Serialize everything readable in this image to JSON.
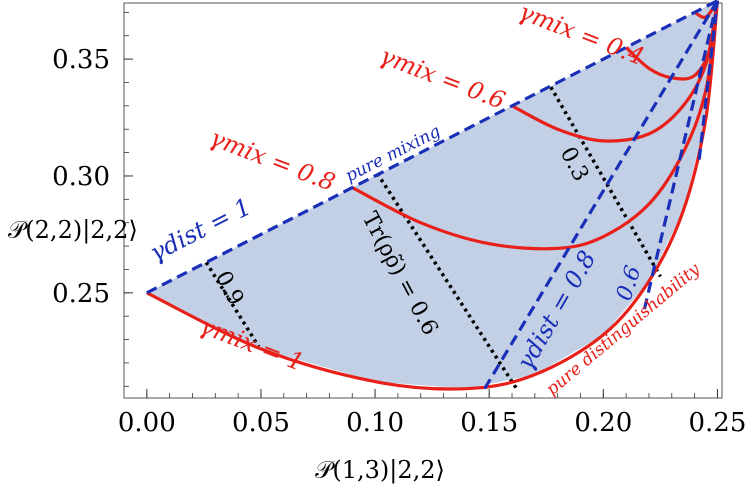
{
  "chart_data": {
    "type": "line",
    "xlim": [
      -0.01,
      0.252
    ],
    "ylim": [
      0.205,
      0.374
    ],
    "x_ticks": [
      0.0,
      0.05,
      0.1,
      0.15,
      0.2,
      0.25
    ],
    "x_tick_labels": [
      "0.00",
      "0.05",
      "0.10",
      "0.15",
      "0.20",
      "0.25"
    ],
    "y_ticks": [
      0.25,
      0.3,
      0.35
    ],
    "y_tick_labels": [
      "0.25",
      "0.30",
      "0.35"
    ],
    "xlabel": "𝒫(1,3)|2,2⟩",
    "ylabel": "𝒫(2,2)|2,2⟩",
    "colors": {
      "region_fill": "#c3d0e6",
      "gamma_mix": "#e8201a",
      "gamma_dist": "#1a2fb8",
      "purity": "#000000"
    },
    "region": {
      "upper_boundary": {
        "name": "pure mixing",
        "x": [
          0.0,
          0.25
        ],
        "y": [
          0.25,
          0.375
        ]
      },
      "lower_boundary": {
        "name": "pure distinguishability",
        "x": [
          0.0,
          0.05,
          0.1,
          0.14,
          0.17,
          0.2,
          0.22,
          0.235,
          0.245,
          0.25
        ],
        "y": [
          0.25,
          0.226,
          0.212,
          0.209,
          0.215,
          0.232,
          0.255,
          0.285,
          0.325,
          0.375
        ]
      }
    },
    "gamma_mix_series": [
      {
        "name": "γmix = 1",
        "x": [
          0.0,
          0.05,
          0.1,
          0.14,
          0.17,
          0.2,
          0.22,
          0.235,
          0.245,
          0.25
        ],
        "y": [
          0.25,
          0.226,
          0.212,
          0.209,
          0.215,
          0.232,
          0.255,
          0.285,
          0.325,
          0.375
        ]
      },
      {
        "name": "γmix = 0.8",
        "x": [
          0.09,
          0.12,
          0.15,
          0.18,
          0.2,
          0.22,
          0.235,
          0.245,
          0.25
        ],
        "y": [
          0.295,
          0.28,
          0.271,
          0.269,
          0.274,
          0.288,
          0.31,
          0.337,
          0.375
        ]
      },
      {
        "name": "γmix = 0.6",
        "x": [
          0.16,
          0.18,
          0.2,
          0.22,
          0.235,
          0.245,
          0.25
        ],
        "y": [
          0.33,
          0.32,
          0.315,
          0.318,
          0.33,
          0.348,
          0.375
        ]
      },
      {
        "name": "γmix = 0.4",
        "x": [
          0.21,
          0.22,
          0.23,
          0.24,
          0.247,
          0.25
        ],
        "y": [
          0.355,
          0.346,
          0.342,
          0.343,
          0.355,
          0.375
        ]
      },
      {
        "name": "",
        "x": [
          0.24,
          0.245,
          0.25
        ],
        "y": [
          0.37,
          0.368,
          0.375
        ]
      }
    ],
    "gamma_dist_series": [
      {
        "name": "γdist = 1",
        "x": [
          0.0,
          0.25
        ],
        "y": [
          0.25,
          0.375
        ]
      },
      {
        "name": "γdist = 0.8",
        "x": [
          0.148,
          0.25
        ],
        "y": [
          0.209,
          0.375
        ]
      },
      {
        "name": "0.6",
        "x": [
          0.218,
          0.25
        ],
        "y": [
          0.243,
          0.375
        ]
      },
      {
        "name": "",
        "x": [
          0.242,
          0.25
        ],
        "y": [
          0.307,
          0.375
        ]
      }
    ],
    "purity_series": [
      {
        "name": "0.9",
        "x": [
          0.026,
          0.049
        ],
        "y": [
          0.263,
          0.227
        ]
      },
      {
        "name": "Tr(ρρ̃) = 0.6",
        "x": [
          0.101,
          0.162
        ],
        "y": [
          0.301,
          0.209
        ]
      },
      {
        "name": "0.3",
        "x": [
          0.177,
          0.225
        ],
        "y": [
          0.338,
          0.257
        ]
      }
    ],
    "annotations": {
      "gamma_mix_1": "γmix = 1",
      "gamma_mix_08": "γmix = 0.8",
      "gamma_mix_06": "γmix = 0.6",
      "gamma_mix_04": "γmix = 0.4",
      "gamma_dist_1": "γdist = 1",
      "gamma_dist_08": "γdist = 0.8",
      "gamma_dist_06": "0.6",
      "purity_09": "0.9",
      "purity_06": "Tr(ρρ̃) = 0.6",
      "purity_03": "0.3",
      "pure_mixing": "pure mixing",
      "pure_dist": "pure distinguishability"
    }
  }
}
